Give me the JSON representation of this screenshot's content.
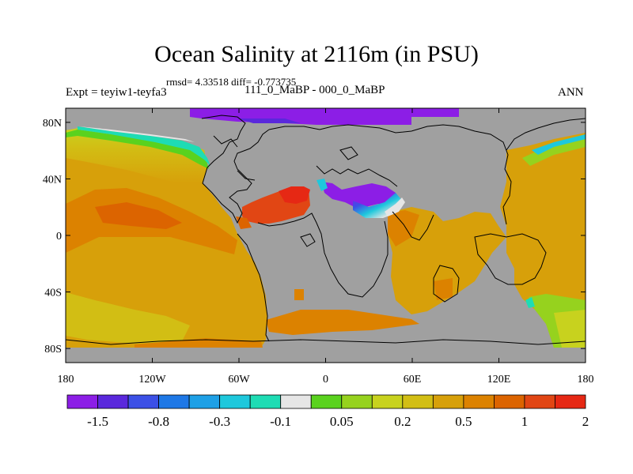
{
  "title": "Ocean Salinity at 2116m (in PSU)",
  "stats_text": "rmsd= 4.33518 diff= -0.773735",
  "left_label": "Expt = teyiw1-teyfa3",
  "center_label": "111_0_MaBP - 000_0_MaBP",
  "right_label": "ANN",
  "chart_data": {
    "type": "heatmap",
    "title": "Ocean Salinity at 2116m (in PSU)",
    "subtitle": "111_0_MaBP - 000_0_MaBP",
    "units": "PSU",
    "projection": "cylindrical-equidistant",
    "xlim": [
      -180,
      180
    ],
    "ylim": [
      -90,
      90
    ],
    "x_ticks": [
      {
        "value": -180,
        "label": "180"
      },
      {
        "value": -120,
        "label": "120W"
      },
      {
        "value": -60,
        "label": "60W"
      },
      {
        "value": 0,
        "label": "0"
      },
      {
        "value": 60,
        "label": "60E"
      },
      {
        "value": 120,
        "label": "120E"
      },
      {
        "value": 180,
        "label": "180"
      }
    ],
    "y_ticks": [
      {
        "value": 80,
        "label": "80N"
      },
      {
        "value": 40,
        "label": "40N"
      },
      {
        "value": 0,
        "label": "0"
      },
      {
        "value": -40,
        "label": "40S"
      },
      {
        "value": -80,
        "label": "80S"
      }
    ],
    "land_color": "#a0a0a0",
    "colorbar": {
      "colors": [
        "#8c1ee6",
        "#5a28dc",
        "#3c50e6",
        "#1e78e6",
        "#1ea0e6",
        "#1ec8dc",
        "#1edcb4",
        "#e6e6e6",
        "#5ad21e",
        "#96d21e",
        "#c8d21e",
        "#d2be14",
        "#d7a00a",
        "#dc8200",
        "#dc6400",
        "#e14614",
        "#e62814"
      ],
      "labels": [
        {
          "after_box": 1,
          "text": "-1.5"
        },
        {
          "after_box": 3,
          "text": "-0.8"
        },
        {
          "after_box": 5,
          "text": "-0.3"
        },
        {
          "after_box": 7,
          "text": "-0.1"
        },
        {
          "after_box": 9,
          "text": "0.05"
        },
        {
          "after_box": 11,
          "text": "0.2"
        },
        {
          "after_box": 13,
          "text": "0.5"
        },
        {
          "after_box": 15,
          "text": "1"
        },
        {
          "after_box": 17,
          "text": "2"
        }
      ]
    }
  }
}
